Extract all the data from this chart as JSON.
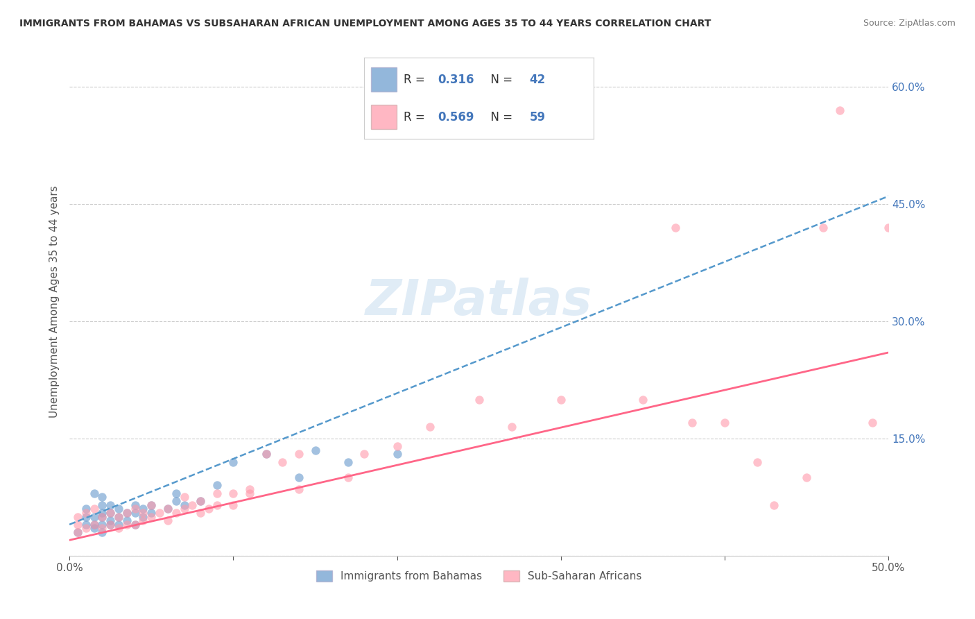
{
  "title": "IMMIGRANTS FROM BAHAMAS VS SUBSAHARAN AFRICAN UNEMPLOYMENT AMONG AGES 35 TO 44 YEARS CORRELATION CHART",
  "source": "Source: ZipAtlas.com",
  "ylabel": "Unemployment Among Ages 35 to 44 years",
  "xlim": [
    0.0,
    0.5
  ],
  "ylim": [
    0.0,
    0.65
  ],
  "xticks": [
    0.0,
    0.1,
    0.2,
    0.3,
    0.4,
    0.5
  ],
  "xtick_labels": [
    "0.0%",
    "",
    "",
    "",
    "",
    "50.0%"
  ],
  "ytick_labels_right": [
    "",
    "15.0%",
    "30.0%",
    "45.0%",
    "60.0%"
  ],
  "yticks_right": [
    0.0,
    0.15,
    0.3,
    0.45,
    0.6
  ],
  "background_color": "#ffffff",
  "watermark": "ZIPatlas",
  "blue_color": "#6699CC",
  "pink_color": "#FF99AA",
  "blue_line_color": "#5599CC",
  "pink_line_color": "#FF6688",
  "legend_label1": "Immigrants from Bahamas",
  "legend_label2": "Sub-Saharan Africans",
  "blue_scatter_x": [
    0.005,
    0.01,
    0.01,
    0.01,
    0.015,
    0.015,
    0.015,
    0.015,
    0.02,
    0.02,
    0.02,
    0.02,
    0.02,
    0.02,
    0.025,
    0.025,
    0.025,
    0.025,
    0.03,
    0.03,
    0.03,
    0.035,
    0.035,
    0.04,
    0.04,
    0.04,
    0.045,
    0.045,
    0.05,
    0.05,
    0.06,
    0.065,
    0.065,
    0.07,
    0.08,
    0.09,
    0.1,
    0.12,
    0.14,
    0.15,
    0.17,
    0.2
  ],
  "blue_scatter_y": [
    0.03,
    0.04,
    0.05,
    0.06,
    0.035,
    0.04,
    0.05,
    0.08,
    0.03,
    0.04,
    0.05,
    0.055,
    0.065,
    0.075,
    0.04,
    0.045,
    0.055,
    0.065,
    0.04,
    0.05,
    0.06,
    0.045,
    0.055,
    0.04,
    0.055,
    0.065,
    0.05,
    0.06,
    0.055,
    0.065,
    0.06,
    0.07,
    0.08,
    0.065,
    0.07,
    0.09,
    0.12,
    0.13,
    0.1,
    0.135,
    0.12,
    0.13
  ],
  "pink_scatter_x": [
    0.005,
    0.005,
    0.005,
    0.01,
    0.01,
    0.015,
    0.015,
    0.02,
    0.02,
    0.025,
    0.025,
    0.03,
    0.03,
    0.035,
    0.035,
    0.04,
    0.04,
    0.045,
    0.045,
    0.05,
    0.05,
    0.055,
    0.06,
    0.06,
    0.065,
    0.07,
    0.07,
    0.075,
    0.08,
    0.08,
    0.085,
    0.09,
    0.09,
    0.1,
    0.1,
    0.11,
    0.11,
    0.12,
    0.13,
    0.14,
    0.14,
    0.17,
    0.18,
    0.2,
    0.22,
    0.25,
    0.27,
    0.3,
    0.35,
    0.37,
    0.38,
    0.4,
    0.42,
    0.43,
    0.45,
    0.46,
    0.47,
    0.49,
    0.5
  ],
  "pink_scatter_y": [
    0.03,
    0.04,
    0.05,
    0.035,
    0.055,
    0.04,
    0.06,
    0.035,
    0.05,
    0.04,
    0.055,
    0.035,
    0.05,
    0.04,
    0.055,
    0.04,
    0.06,
    0.045,
    0.055,
    0.05,
    0.065,
    0.055,
    0.045,
    0.06,
    0.055,
    0.06,
    0.075,
    0.065,
    0.055,
    0.07,
    0.06,
    0.065,
    0.08,
    0.065,
    0.08,
    0.08,
    0.085,
    0.13,
    0.12,
    0.085,
    0.13,
    0.1,
    0.13,
    0.14,
    0.165,
    0.2,
    0.165,
    0.2,
    0.2,
    0.42,
    0.17,
    0.17,
    0.12,
    0.065,
    0.1,
    0.42,
    0.57,
    0.17,
    0.42
  ],
  "blue_trendline_x": [
    0.0,
    0.5
  ],
  "blue_trendline_y": [
    0.04,
    0.46
  ],
  "pink_trendline_x": [
    0.0,
    0.5
  ],
  "pink_trendline_y": [
    0.02,
    0.26
  ]
}
